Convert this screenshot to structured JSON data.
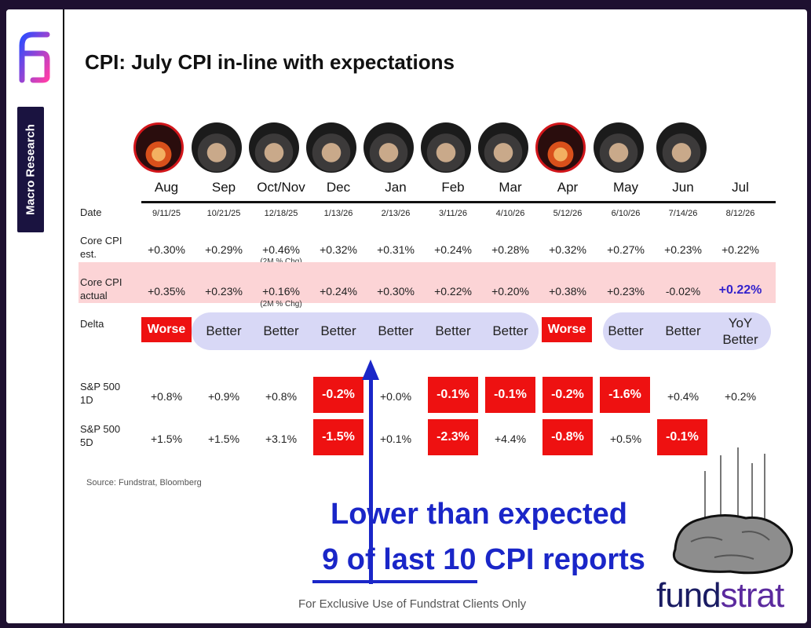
{
  "side_tab": "Macro Research",
  "title": "CPI: July CPI in-line with expectations",
  "avatars": [
    {
      "month": "Aug",
      "icon": "fire-muppet-icon"
    },
    {
      "month": "Sep",
      "icon": "person-in-hat-icon"
    },
    {
      "month": "Oct/Nov",
      "icon": "person-in-hat-icon"
    },
    {
      "month": "Dec",
      "icon": "person-in-hat-icon"
    },
    {
      "month": "Jan",
      "icon": "person-in-hat-icon"
    },
    {
      "month": "Feb",
      "icon": "person-in-hat-icon"
    },
    {
      "month": "Mar",
      "icon": "person-in-hat-icon"
    },
    {
      "month": "Apr",
      "icon": "fire-muppet-icon"
    },
    {
      "month": "May",
      "icon": "person-in-hat-icon"
    },
    {
      "month": "Jun",
      "icon": "person-in-hat-icon"
    }
  ],
  "months": [
    "Aug",
    "Sep",
    "Oct/Nov",
    "Dec",
    "Jan",
    "Feb",
    "Mar",
    "Apr",
    "May",
    "Jun",
    "Jul"
  ],
  "rows": {
    "date": {
      "label": "Date",
      "values": [
        "9/11/25",
        "10/21/25",
        "12/18/25",
        "1/13/26",
        "2/13/26",
        "3/11/26",
        "4/10/26",
        "5/12/26",
        "6/10/26",
        "7/14/26",
        "8/12/26"
      ]
    },
    "core_est": {
      "label_1": "Core CPI",
      "label_2": "est.",
      "values": [
        "+0.30%",
        "+0.29%",
        "+0.46%",
        "+0.32%",
        "+0.31%",
        "+0.24%",
        "+0.28%",
        "+0.32%",
        "+0.27%",
        "+0.23%",
        "+0.22%"
      ],
      "note": "(2M % Chg)"
    },
    "core_actual": {
      "label_1": "Core CPI",
      "label_2": "actual",
      "values": [
        "+0.35%",
        "+0.23%",
        "+0.16%",
        "+0.24%",
        "+0.30%",
        "+0.22%",
        "+0.20%",
        "+0.38%",
        "+0.23%",
        "-0.02%",
        "+0.22%"
      ],
      "note": "(2M % Chg)"
    },
    "delta": {
      "label": "Delta",
      "values": [
        "Worse",
        "Better",
        "Better",
        "Better",
        "Better",
        "Better",
        "Better",
        "Worse",
        "Better",
        "Better",
        "YoY"
      ],
      "jul_line2": "Better"
    },
    "sp_1d": {
      "label_1": "S&P 500",
      "label_2": "1D",
      "values": [
        "+0.8%",
        "+0.9%",
        "+0.8%",
        "-0.2%",
        "+0.0%",
        "-0.1%",
        "-0.1%",
        "-0.2%",
        "-1.6%",
        "+0.4%",
        "+0.2%"
      ]
    },
    "sp_5d": {
      "label_1": "S&P 500",
      "label_2": "5D",
      "values": [
        "+1.5%",
        "+1.5%",
        "+3.1%",
        "-1.5%",
        "+0.1%",
        "-2.3%",
        "+4.4%",
        "-0.8%",
        "+0.5%",
        "-0.1%"
      ]
    }
  },
  "source": "Source: Fundstrat, Bloomberg",
  "callout": {
    "line1": "Lower than expected",
    "line2_underlined": "9 of last 10",
    "line2_rest": " CPI reports"
  },
  "footer": "For Exclusive Use of Fundstrat Clients Only",
  "brand": {
    "part1": "fund",
    "part2": "strat"
  },
  "colors": {
    "highlight_red": "#ee1111",
    "better_pill": "#d8d8f6",
    "actual_band": "#fcd4d6",
    "callout_blue": "#1a26c8",
    "jul_actual": "#3322cc"
  }
}
